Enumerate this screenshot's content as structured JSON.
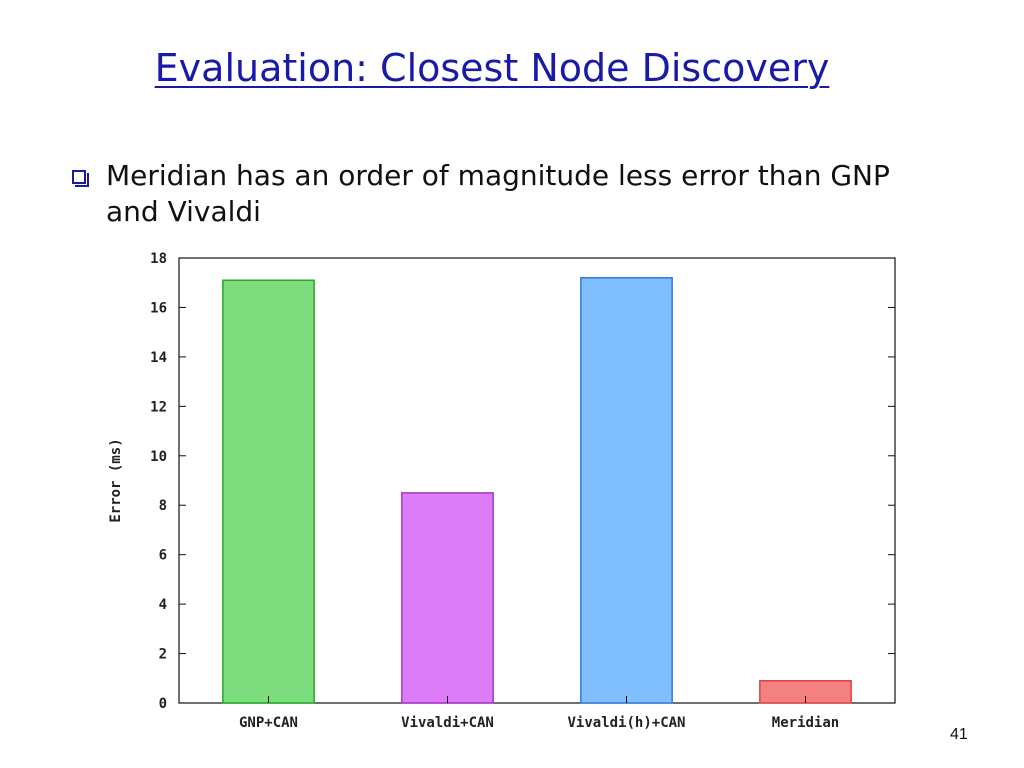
{
  "slide": {
    "title": "Evaluation: Closest Node Discovery",
    "bullet": "Meridian has an order of magnitude less error than GNP and Vivaldi",
    "page_number": "41"
  },
  "chart_data": {
    "type": "bar",
    "categories": [
      "GNP+CAN",
      "Vivaldi+CAN",
      "Vivaldi(h)+CAN",
      "Meridian"
    ],
    "values": [
      17.1,
      8.5,
      17.2,
      0.9
    ],
    "colors": [
      "#7ddc7d",
      "#dd7cf8",
      "#80bfff",
      "#f58080"
    ],
    "edge_colors": [
      "#22aa22",
      "#aa33cc",
      "#3377dd",
      "#dd4444"
    ],
    "title": "",
    "xlabel": "",
    "ylabel": "Error (ms)",
    "ylim": [
      0,
      18
    ],
    "yticks": [
      0,
      2,
      4,
      6,
      8,
      10,
      12,
      14,
      16,
      18
    ],
    "grid": false,
    "legend": "none"
  }
}
